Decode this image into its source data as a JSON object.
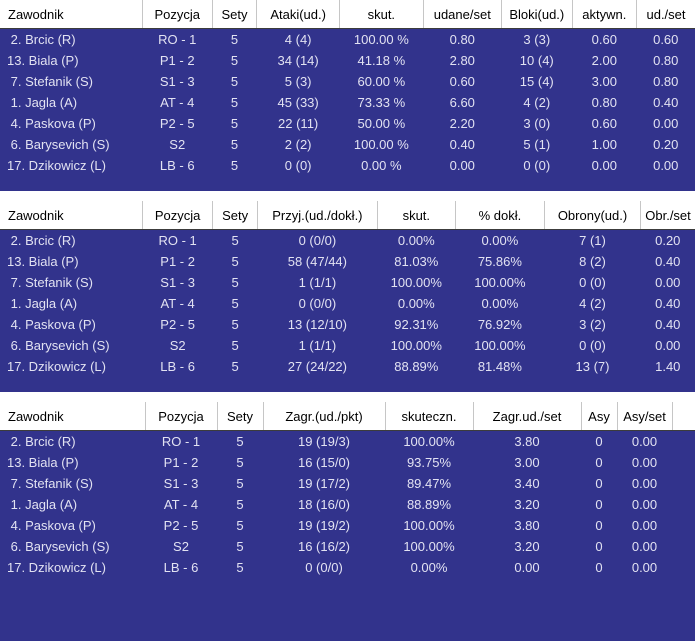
{
  "page": {
    "background_color": "#32338C",
    "header_bg": "#FFFFFF",
    "header_text_color": "#000000",
    "row_text_color": "#E2E2F2"
  },
  "tables": [
    {
      "name": "attack-block-stats",
      "columns": [
        "Zawodnik",
        "Pozycja",
        "Sety",
        "Ataki(ud.)",
        "skut.",
        "udane/set",
        "Bloki(ud.)",
        "aktywn.",
        "ud./set"
      ],
      "rows": [
        [
          " 2. Brcic (R)",
          "RO - 1",
          "5",
          "4 (4)",
          "100.00 %",
          "0.80",
          "3 (3)",
          "0.60",
          "0.60"
        ],
        [
          "13. Biala (P)",
          "P1 - 2",
          "5",
          "34 (14)",
          "41.18 %",
          "2.80",
          "10 (4)",
          "2.00",
          "0.80"
        ],
        [
          " 7. Stefanik (S)",
          "S1 - 3",
          "5",
          "5 (3)",
          "60.00 %",
          "0.60",
          "15 (4)",
          "3.00",
          "0.80"
        ],
        [
          " 1. Jagla (A)",
          "AT - 4",
          "5",
          "45 (33)",
          "73.33 %",
          "6.60",
          "4 (2)",
          "0.80",
          "0.40"
        ],
        [
          " 4. Paskova (P)",
          "P2 - 5",
          "5",
          "22 (11)",
          "50.00 %",
          "2.20",
          "3 (0)",
          "0.60",
          "0.00"
        ],
        [
          " 6. Barysevich (S)",
          "S2",
          "5",
          "2 (2)",
          "100.00 %",
          "0.40",
          "5 (1)",
          "1.00",
          "0.20"
        ],
        [
          "17. Dzikowicz (L)",
          "LB - 6",
          "5",
          "0 (0)",
          "0.00 %",
          "0.00",
          "0 (0)",
          "0.00",
          "0.00"
        ]
      ]
    },
    {
      "name": "reception-defense-stats",
      "columns": [
        "Zawodnik",
        "Pozycja",
        "Sety",
        "Przyj.(ud./dokł.)",
        "skut.",
        "% dokł.",
        "Obrony(ud.)",
        "Obr./set"
      ],
      "rows": [
        [
          " 2. Brcic (R)",
          "RO - 1",
          "5",
          "0 (0/0)",
          "0.00%",
          "0.00%",
          "7 (1)",
          "0.20"
        ],
        [
          "13. Biala (P)",
          "P1 - 2",
          "5",
          "58 (47/44)",
          "81.03%",
          "75.86%",
          "8 (2)",
          "0.40"
        ],
        [
          " 7. Stefanik (S)",
          "S1 - 3",
          "5",
          "1 (1/1)",
          "100.00%",
          "100.00%",
          "0 (0)",
          "0.00"
        ],
        [
          " 1. Jagla (A)",
          "AT - 4",
          "5",
          "0 (0/0)",
          "0.00%",
          "0.00%",
          "4 (2)",
          "0.40"
        ],
        [
          " 4. Paskova (P)",
          "P2 - 5",
          "5",
          "13 (12/10)",
          "92.31%",
          "76.92%",
          "3 (2)",
          "0.40"
        ],
        [
          " 6. Barysevich (S)",
          "S2",
          "5",
          "1 (1/1)",
          "100.00%",
          "100.00%",
          "0 (0)",
          "0.00"
        ],
        [
          "17. Dzikowicz (L)",
          "LB - 6",
          "5",
          "27 (24/22)",
          "88.89%",
          "81.48%",
          "13 (7)",
          "1.40"
        ]
      ]
    },
    {
      "name": "serve-stats",
      "columns": [
        "Zawodnik",
        "Pozycja",
        "Sety",
        "Zagr.(ud./pkt)",
        "skuteczn.",
        "Zagr.ud./set",
        "Asy",
        "Asy/set"
      ],
      "rows": [
        [
          " 2. Brcic (R)",
          "RO - 1",
          "5",
          "19 (19/3)",
          "100.00%",
          "3.80",
          "0",
          "0.00"
        ],
        [
          "13. Biala (P)",
          "P1 - 2",
          "5",
          "16 (15/0)",
          "93.75%",
          "3.00",
          "0",
          "0.00"
        ],
        [
          " 7. Stefanik (S)",
          "S1 - 3",
          "5",
          "19 (17/2)",
          "89.47%",
          "3.40",
          "0",
          "0.00"
        ],
        [
          " 1. Jagla (A)",
          "AT - 4",
          "5",
          "18 (16/0)",
          "88.89%",
          "3.20",
          "0",
          "0.00"
        ],
        [
          " 4. Paskova (P)",
          "P2 - 5",
          "5",
          "19 (19/2)",
          "100.00%",
          "3.80",
          "0",
          "0.00"
        ],
        [
          " 6. Barysevich (S)",
          "S2",
          "5",
          "16 (16/2)",
          "100.00%",
          "3.20",
          "0",
          "0.00"
        ],
        [
          "17. Dzikowicz (L)",
          "LB - 6",
          "5",
          "0 (0/0)",
          "0.00%",
          "0.00",
          "0",
          "0.00"
        ]
      ]
    }
  ]
}
